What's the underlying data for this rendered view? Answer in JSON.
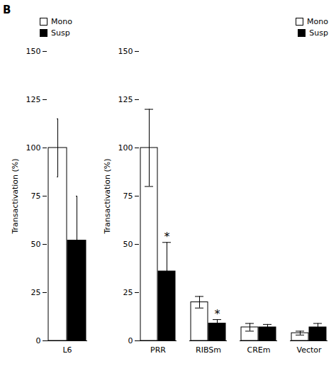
{
  "chart_data": [
    {
      "type": "bar",
      "title": "B",
      "categories": [
        "L6"
      ],
      "series": [
        {
          "name": "Mono",
          "color": "#ffffff",
          "values": [
            100
          ],
          "errors": [
            15
          ]
        },
        {
          "name": "Susp",
          "color": "#000000",
          "values": [
            52
          ],
          "errors": [
            23
          ]
        }
      ],
      "ylim": [
        0,
        150
      ],
      "yticks": [
        0,
        25,
        50,
        75,
        100,
        125,
        150
      ],
      "ylabel": "Transactivation (%)",
      "legend": "upper left"
    },
    {
      "type": "bar",
      "categories": [
        "PRR",
        "RIBSm",
        "CREm",
        "Vector"
      ],
      "series": [
        {
          "name": "Mono",
          "color": "#ffffff",
          "values": [
            100,
            20,
            7,
            4
          ],
          "errors": [
            20,
            3,
            2,
            1
          ]
        },
        {
          "name": "Susp",
          "color": "#000000",
          "values": [
            36,
            9,
            7,
            7
          ],
          "errors": [
            15,
            2,
            1.5,
            2
          ]
        }
      ],
      "annotations": [
        {
          "text": "*",
          "category": "PRR",
          "series": "Susp"
        },
        {
          "text": "*",
          "category": "RIBSm",
          "series": "Susp"
        }
      ],
      "ylim": [
        0,
        150
      ],
      "yticks": [
        0,
        25,
        50,
        75,
        100,
        125,
        150
      ],
      "ylabel": "Transactivation (%)",
      "legend": "upper right"
    }
  ]
}
